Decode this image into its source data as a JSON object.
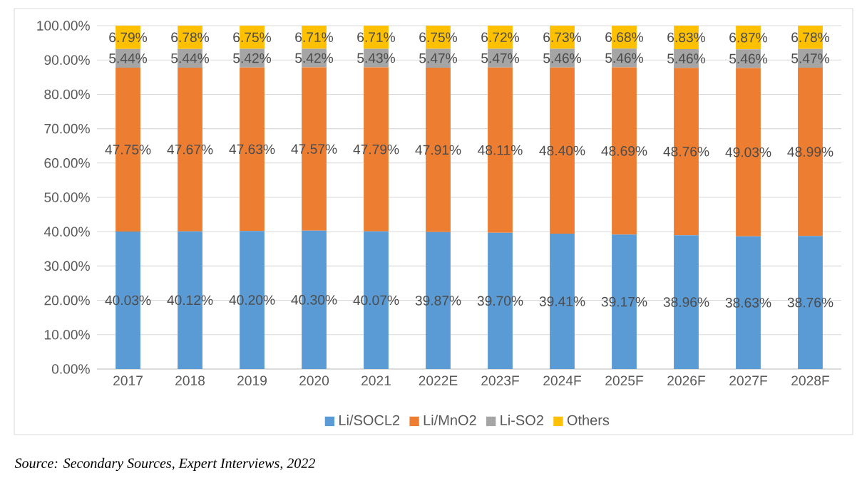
{
  "chart_data": {
    "type": "bar",
    "stacked": true,
    "grid": "y",
    "legend": "bottom",
    "categories": [
      "2017",
      "2018",
      "2019",
      "2020",
      "2021",
      "2022E",
      "2023F",
      "2024F",
      "2025F",
      "2026F",
      "2027F",
      "2028F"
    ],
    "ylim": [
      0,
      100.01
    ],
    "yticks": [
      {
        "value": 0,
        "label": "0.00%"
      },
      {
        "value": 10,
        "label": "10.00%"
      },
      {
        "value": 20,
        "label": "20.00%"
      },
      {
        "value": 30,
        "label": "30.00%"
      },
      {
        "value": 40,
        "label": "40.00%"
      },
      {
        "value": 50,
        "label": "50.00%"
      },
      {
        "value": 60,
        "label": "60.00%"
      },
      {
        "value": 70,
        "label": "70.00%"
      },
      {
        "value": 80,
        "label": "80.00%"
      },
      {
        "value": 90,
        "label": "90.00%"
      },
      {
        "value": 100,
        "label": "100.00%"
      }
    ],
    "series": [
      {
        "name": "Li/SOCL2",
        "color": "#5b9bd5",
        "values": [
          40.03,
          40.12,
          40.2,
          40.3,
          40.07,
          39.87,
          39.7,
          39.41,
          39.17,
          38.96,
          38.63,
          38.76
        ],
        "value_labels": [
          "40.03%",
          "40.12%",
          "40.20%",
          "40.30%",
          "40.07%",
          "39.87%",
          "39.70%",
          "39.41%",
          "39.17%",
          "38.96%",
          "38.63%",
          "38.76%"
        ]
      },
      {
        "name": "Li/MnO2",
        "color": "#ed7d31",
        "values": [
          47.75,
          47.67,
          47.63,
          47.57,
          47.79,
          47.91,
          48.11,
          48.4,
          48.69,
          48.76,
          49.03,
          48.99
        ],
        "value_labels": [
          "47.75%",
          "47.67%",
          "47.63%",
          "47.57%",
          "47.79%",
          "47.91%",
          "48.11%",
          "48.40%",
          "48.69%",
          "48.76%",
          "49.03%",
          "48.99%"
        ]
      },
      {
        "name": "Li-SO2",
        "color": "#a5a5a5",
        "values": [
          5.44,
          5.44,
          5.42,
          5.42,
          5.43,
          5.47,
          5.47,
          5.46,
          5.46,
          5.46,
          5.46,
          5.47
        ],
        "value_labels": [
          "5.44%",
          "5.44%",
          "5.42%",
          "5.42%",
          "5.43%",
          "5.47%",
          "5.47%",
          "5.46%",
          "5.46%",
          "5.46%",
          "5.46%",
          "5.47%"
        ]
      },
      {
        "name": "Others",
        "color": "#ffc000",
        "values": [
          6.79,
          6.78,
          6.75,
          6.71,
          6.71,
          6.75,
          6.72,
          6.73,
          6.68,
          6.83,
          6.87,
          6.78
        ],
        "value_labels": [
          "6.79%",
          "6.78%",
          "6.75%",
          "6.71%",
          "6.71%",
          "6.75%",
          "6.72%",
          "6.73%",
          "6.68%",
          "6.83%",
          "6.87%",
          "6.78%"
        ]
      }
    ],
    "annotations": [
      "Source: Secondary Sources, Expert Interviews, 2022"
    ]
  }
}
